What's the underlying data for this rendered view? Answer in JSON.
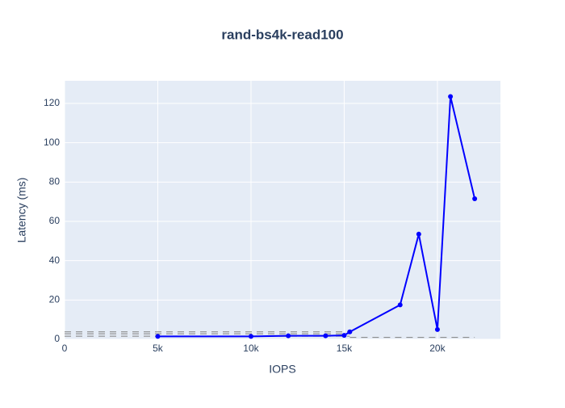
{
  "chart_data": {
    "type": "line",
    "title": "rand-bs4k-read100",
    "x_label": "IOPS",
    "y_label": "Latency (ms)",
    "xlim": [
      0,
      23380
    ],
    "ylim": [
      0,
      131.5
    ],
    "xticks": [
      0,
      {
        "value": 5000,
        "label": "5k"
      },
      {
        "value": 10000,
        "label": "10k"
      },
      {
        "value": 15000,
        "label": "15k"
      },
      {
        "value": 20000,
        "label": "20k"
      }
    ],
    "yticks": [
      0,
      20,
      40,
      60,
      80,
      100,
      120
    ],
    "grid": true,
    "series": [
      {
        "color": "#808080",
        "dash": true,
        "x": [
          0,
          15300
        ],
        "values": [
          3.8,
          3.8
        ]
      },
      {
        "color": "#808080",
        "dash": true,
        "x": [
          0,
          15300
        ],
        "values": [
          2.8,
          2.8
        ]
      },
      {
        "color": "#808080",
        "dash": true,
        "x": [
          0,
          15300
        ],
        "values": [
          1.6,
          1.6
        ]
      },
      {
        "color": "#808080",
        "dash": true,
        "x": [
          15300,
          22000
        ],
        "values": [
          1,
          1
        ]
      },
      {
        "color": "#0000ff",
        "dash": false,
        "markers": true,
        "x": [
          5000,
          10000,
          12000,
          14000,
          15000,
          15300,
          18000,
          19000,
          20000,
          20700,
          22000
        ],
        "values": [
          1.5,
          1.5,
          1.8,
          1.8,
          2,
          3.8,
          17.5,
          53.5,
          5,
          123.5,
          71.5
        ]
      }
    ]
  }
}
